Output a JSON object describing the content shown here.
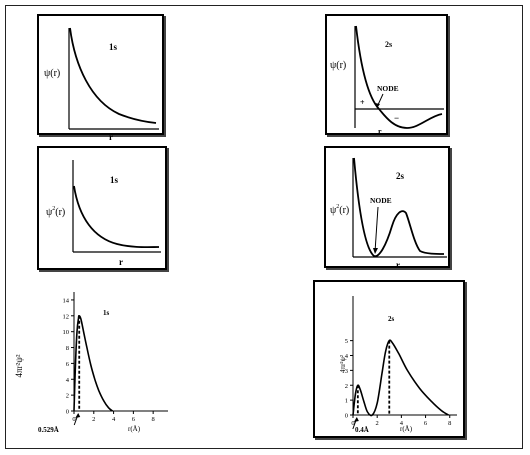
{
  "panels": {
    "psi_1s": {
      "title": "1s",
      "ylabel_base": "ψ",
      "ylabel_paren": "(r)",
      "xlabel": "r"
    },
    "psi_2s": {
      "title": "2s",
      "ylabel_base": "ψ",
      "ylabel_paren": "(r)",
      "xlabel": "r",
      "node_label": "NODE",
      "plus": "+",
      "minus": "−"
    },
    "psi2_1s": {
      "title": "1s",
      "ylabel_base": "ψ",
      "ylabel_sup": "2",
      "ylabel_paren": "(r)",
      "xlabel": "r"
    },
    "psi2_2s": {
      "title": "2s",
      "ylabel_base": "ψ",
      "ylabel_sup": "2",
      "ylabel_paren": "(r)",
      "xlabel": "r",
      "node_label": "NODE"
    },
    "rad_1s": {
      "title": "1s",
      "ylabel": "4πr²ψ²",
      "xlabel": "r(Å)",
      "peak_label": "0.529Å"
    },
    "rad_2s": {
      "title": "2s",
      "ylabel": "4πr²ψ²",
      "xlabel": "r(Å)",
      "peak_label": "0.4Å"
    }
  },
  "chart_data": [
    {
      "type": "line",
      "title": "1s",
      "xlabel": "r(Å)",
      "ylabel": "4πr²ψ²",
      "xlim": [
        0,
        9.5
      ],
      "ylim": [
        0,
        15
      ],
      "x_ticks": [
        0,
        2,
        4,
        6,
        8
      ],
      "y_ticks": [
        0,
        2,
        4,
        6,
        8,
        10,
        12,
        14
      ],
      "peak": {
        "x": 0.529,
        "y": 12
      },
      "x": [
        0.0,
        0.15,
        0.3,
        0.45,
        0.529,
        0.7,
        1.0,
        1.3,
        1.7,
        2.1,
        2.5,
        3.0,
        3.5,
        3.9
      ],
      "y": [
        0.0,
        6.0,
        10.0,
        11.7,
        12.0,
        11.6,
        9.8,
        8.0,
        5.8,
        4.0,
        2.6,
        1.3,
        0.4,
        0.0
      ]
    },
    {
      "type": "line",
      "title": "2s",
      "xlabel": "r(Å)",
      "ylabel": "4πr²ψ²",
      "xlim": [
        0,
        8.6
      ],
      "ylim": [
        0,
        8
      ],
      "x_ticks": [
        0,
        2,
        4,
        6,
        8
      ],
      "y_ticks": [
        0,
        1,
        2,
        3,
        4,
        5
      ],
      "peaks": [
        {
          "x": 0.4,
          "y": 2
        },
        {
          "x": 3,
          "y": 5
        }
      ],
      "node_x": 1.6,
      "x": [
        0.0,
        0.2,
        0.4,
        0.6,
        0.9,
        1.2,
        1.6,
        2.0,
        2.4,
        2.7,
        3.0,
        3.3,
        3.8,
        4.5,
        5.5,
        6.5,
        7.3,
        7.9
      ],
      "y": [
        0.0,
        1.4,
        2.0,
        1.7,
        0.9,
        0.2,
        0.0,
        0.8,
        2.8,
        4.3,
        5.0,
        4.8,
        4.1,
        3.0,
        1.8,
        0.9,
        0.3,
        0.0
      ]
    }
  ]
}
